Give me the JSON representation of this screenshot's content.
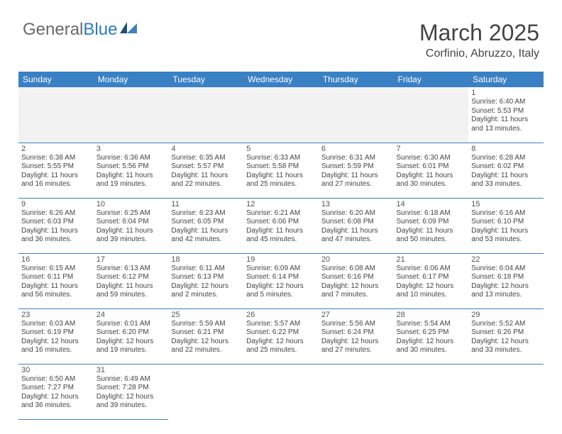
{
  "brand": {
    "part1": "General",
    "part2": "Blue"
  },
  "title": "March 2025",
  "location": "Corfinio, Abruzzo, Italy",
  "colors": {
    "header_bg": "#3a80c4",
    "header_text": "#ffffff",
    "border": "#3a80c4",
    "logo_gray": "#6a6a6a",
    "logo_blue": "#2a7bbf",
    "blank_fill": "#f2f2f2"
  },
  "weekdays": [
    "Sunday",
    "Monday",
    "Tuesday",
    "Wednesday",
    "Thursday",
    "Friday",
    "Saturday"
  ],
  "weeks": [
    [
      null,
      null,
      null,
      null,
      null,
      null,
      {
        "n": "1",
        "sunrise": "6:40 AM",
        "sunset": "5:53 PM",
        "dlh": 11,
        "dlm": 13
      }
    ],
    [
      {
        "n": "2",
        "sunrise": "6:38 AM",
        "sunset": "5:55 PM",
        "dlh": 11,
        "dlm": 16
      },
      {
        "n": "3",
        "sunrise": "6:36 AM",
        "sunset": "5:56 PM",
        "dlh": 11,
        "dlm": 19
      },
      {
        "n": "4",
        "sunrise": "6:35 AM",
        "sunset": "5:57 PM",
        "dlh": 11,
        "dlm": 22
      },
      {
        "n": "5",
        "sunrise": "6:33 AM",
        "sunset": "5:58 PM",
        "dlh": 11,
        "dlm": 25
      },
      {
        "n": "6",
        "sunrise": "6:31 AM",
        "sunset": "5:59 PM",
        "dlh": 11,
        "dlm": 27
      },
      {
        "n": "7",
        "sunrise": "6:30 AM",
        "sunset": "6:01 PM",
        "dlh": 11,
        "dlm": 30
      },
      {
        "n": "8",
        "sunrise": "6:28 AM",
        "sunset": "6:02 PM",
        "dlh": 11,
        "dlm": 33
      }
    ],
    [
      {
        "n": "9",
        "sunrise": "6:26 AM",
        "sunset": "6:03 PM",
        "dlh": 11,
        "dlm": 36
      },
      {
        "n": "10",
        "sunrise": "6:25 AM",
        "sunset": "6:04 PM",
        "dlh": 11,
        "dlm": 39
      },
      {
        "n": "11",
        "sunrise": "6:23 AM",
        "sunset": "6:05 PM",
        "dlh": 11,
        "dlm": 42
      },
      {
        "n": "12",
        "sunrise": "6:21 AM",
        "sunset": "6:06 PM",
        "dlh": 11,
        "dlm": 45
      },
      {
        "n": "13",
        "sunrise": "6:20 AM",
        "sunset": "6:08 PM",
        "dlh": 11,
        "dlm": 47
      },
      {
        "n": "14",
        "sunrise": "6:18 AM",
        "sunset": "6:09 PM",
        "dlh": 11,
        "dlm": 50
      },
      {
        "n": "15",
        "sunrise": "6:16 AM",
        "sunset": "6:10 PM",
        "dlh": 11,
        "dlm": 53
      }
    ],
    [
      {
        "n": "16",
        "sunrise": "6:15 AM",
        "sunset": "6:11 PM",
        "dlh": 11,
        "dlm": 56
      },
      {
        "n": "17",
        "sunrise": "6:13 AM",
        "sunset": "6:12 PM",
        "dlh": 11,
        "dlm": 59
      },
      {
        "n": "18",
        "sunrise": "6:11 AM",
        "sunset": "6:13 PM",
        "dlh": 12,
        "dlm": 2
      },
      {
        "n": "19",
        "sunrise": "6:09 AM",
        "sunset": "6:14 PM",
        "dlh": 12,
        "dlm": 5
      },
      {
        "n": "20",
        "sunrise": "6:08 AM",
        "sunset": "6:16 PM",
        "dlh": 12,
        "dlm": 7
      },
      {
        "n": "21",
        "sunrise": "6:06 AM",
        "sunset": "6:17 PM",
        "dlh": 12,
        "dlm": 10
      },
      {
        "n": "22",
        "sunrise": "6:04 AM",
        "sunset": "6:18 PM",
        "dlh": 12,
        "dlm": 13
      }
    ],
    [
      {
        "n": "23",
        "sunrise": "6:03 AM",
        "sunset": "6:19 PM",
        "dlh": 12,
        "dlm": 16
      },
      {
        "n": "24",
        "sunrise": "6:01 AM",
        "sunset": "6:20 PM",
        "dlh": 12,
        "dlm": 19
      },
      {
        "n": "25",
        "sunrise": "5:59 AM",
        "sunset": "6:21 PM",
        "dlh": 12,
        "dlm": 22
      },
      {
        "n": "26",
        "sunrise": "5:57 AM",
        "sunset": "6:22 PM",
        "dlh": 12,
        "dlm": 25
      },
      {
        "n": "27",
        "sunrise": "5:56 AM",
        "sunset": "6:24 PM",
        "dlh": 12,
        "dlm": 27
      },
      {
        "n": "28",
        "sunrise": "5:54 AM",
        "sunset": "6:25 PM",
        "dlh": 12,
        "dlm": 30
      },
      {
        "n": "29",
        "sunrise": "5:52 AM",
        "sunset": "6:26 PM",
        "dlh": 12,
        "dlm": 33
      }
    ],
    [
      {
        "n": "30",
        "sunrise": "6:50 AM",
        "sunset": "7:27 PM",
        "dlh": 12,
        "dlm": 36
      },
      {
        "n": "31",
        "sunrise": "6:49 AM",
        "sunset": "7:28 PM",
        "dlh": 12,
        "dlm": 39
      },
      null,
      null,
      null,
      null,
      null
    ]
  ],
  "labels": {
    "sunrise": "Sunrise:",
    "sunset": "Sunset:",
    "daylight": "Daylight:",
    "hours": "hours",
    "and": "and",
    "minutes": "minutes."
  }
}
